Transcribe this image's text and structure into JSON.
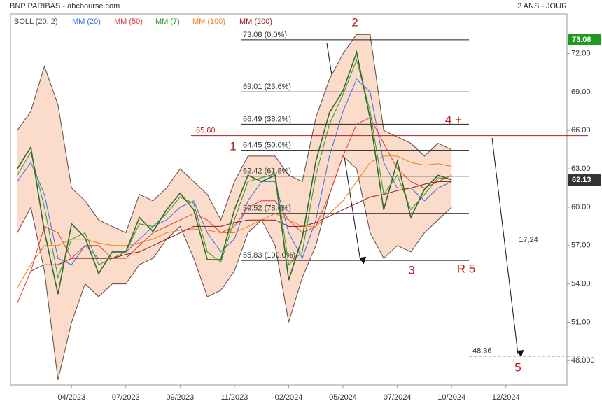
{
  "chart_data": {
    "type": "line",
    "title": "BNP PARIBAS - abcbourse.com",
    "period": "2 ANS - JOUR",
    "categories": [
      null,
      null,
      null,
      null,
      "04/2023",
      null,
      null,
      null,
      "07/2023",
      null,
      null,
      null,
      "09/2023",
      null,
      null,
      null,
      "11/2023",
      null,
      null,
      null,
      "02/2024",
      null,
      null,
      null,
      "05/2024",
      null,
      null,
      null,
      "07/2024",
      null,
      null,
      null,
      "10/2024",
      null,
      null,
      null,
      "12/2024",
      null,
      null,
      null,
      null
    ],
    "values": [
      63.0,
      64.7,
      58.1,
      53.2,
      58.7,
      57.6,
      54.8,
      56.5,
      56.5,
      59.2,
      58.1,
      59.8,
      61.1,
      59.8,
      55.9,
      55.9,
      59.8,
      62.5,
      62.0,
      62.5,
      54.3,
      57.6,
      63.6,
      67.4,
      69.1,
      72.1,
      66.9,
      59.8,
      63.6,
      59.2,
      61.4,
      62.5,
      62.13,
      null,
      null,
      null,
      null,
      null,
      null,
      null,
      null
    ],
    "color": "#2f6b2f",
    "bollinger": {
      "name": "BOLL (20, 2)",
      "color": "#5a4a44",
      "fill": "#fbdccb",
      "upper": [
        66,
        67.5,
        71,
        68,
        61.5,
        60.5,
        59,
        58.5,
        58,
        61,
        60.5,
        61.5,
        63,
        62,
        61,
        59,
        62,
        64,
        64,
        64,
        62.5,
        62,
        67,
        70,
        72,
        73.5,
        73.5,
        66,
        65.5,
        65,
        64,
        65,
        64.5,
        null,
        null,
        null,
        null,
        null,
        null,
        null,
        null
      ],
      "lower": [
        58,
        60,
        55,
        46.5,
        51,
        54,
        53,
        54,
        54,
        55.5,
        56,
        57.5,
        58.5,
        56,
        53,
        53.5,
        55,
        58,
        59,
        57,
        51,
        54.5,
        57,
        61,
        64,
        63,
        58,
        56,
        57,
        56.5,
        58,
        59,
        60,
        null,
        null,
        null,
        null,
        null,
        null,
        null,
        null
      ]
    },
    "series": [
      {
        "name": "MM (20)",
        "color": "#3d6fe0",
        "values": [
          62,
          63.5,
          61,
          56,
          55.5,
          57,
          56,
          56,
          56.5,
          57.5,
          58.5,
          59,
          60,
          60.5,
          58,
          56.5,
          57.5,
          60.5,
          62,
          62,
          58,
          56,
          59,
          64,
          67.5,
          70,
          69,
          63.5,
          61.5,
          61.5,
          60.5,
          61.5,
          62,
          null,
          null,
          null,
          null,
          null,
          null,
          null,
          null
        ]
      },
      {
        "name": "MM (50)",
        "color": "#e03a3a",
        "values": [
          52.5,
          55,
          58.5,
          58,
          56,
          57,
          57,
          56,
          56,
          57,
          58,
          58.5,
          59,
          59.5,
          59,
          58,
          58.5,
          60,
          60.5,
          60.5,
          59,
          58,
          58.5,
          61,
          64,
          66.5,
          67,
          65,
          63,
          62,
          61.5,
          62,
          62.5,
          null,
          null,
          null,
          null,
          null,
          null,
          null,
          null
        ]
      },
      {
        "name": "MM (7)",
        "color": "#2a9a2a",
        "values": [
          62.5,
          64.3,
          60,
          54.5,
          57.5,
          58,
          55.5,
          56,
          56.5,
          58.7,
          58.5,
          59.5,
          60.8,
          60.3,
          56.5,
          55.7,
          59,
          62,
          62.3,
          62.6,
          55.5,
          56.5,
          62.5,
          66.5,
          68.8,
          71.5,
          67.5,
          61,
          62.5,
          59.8,
          61,
          62.3,
          62.2,
          null,
          null,
          null,
          null,
          null,
          null,
          null,
          null
        ]
      },
      {
        "name": "MM (100)",
        "color": "#f07f1a",
        "values": [
          53.7,
          55.5,
          57,
          57,
          57.5,
          57.5,
          57.2,
          57,
          57,
          57.2,
          57.5,
          58,
          58.2,
          58.3,
          58.2,
          58,
          58,
          58.5,
          59,
          59.5,
          59,
          58.5,
          58.5,
          59.5,
          60.5,
          62,
          63.5,
          64,
          64,
          63.5,
          63.3,
          63.4,
          63.2,
          null,
          null,
          null,
          null,
          null,
          null,
          null,
          null
        ]
      },
      {
        "name": "MM (200)",
        "color": "#8b1a1a",
        "values": [
          null,
          55,
          55.5,
          55.5,
          56,
          56,
          56,
          56,
          56.3,
          56.5,
          57,
          57.5,
          58,
          58.5,
          58.5,
          58.5,
          58.8,
          59,
          59,
          59,
          58.5,
          58.5,
          58.8,
          59.3,
          59.8,
          60.3,
          60.8,
          61,
          61.3,
          61.5,
          61.8,
          62,
          62,
          null,
          null,
          null,
          null,
          null,
          null,
          null,
          null
        ]
      }
    ],
    "ylim": [
      46.1,
      75.1
    ],
    "yticks": [
      {
        "value": 48,
        "label": "48.000"
      },
      {
        "value": 51,
        "label": "51.00"
      },
      {
        "value": 54,
        "label": "54.00"
      },
      {
        "value": 57,
        "label": "57.00"
      },
      {
        "value": 60,
        "label": "60.00"
      },
      {
        "value": 63,
        "label": "63.00"
      },
      {
        "value": 66,
        "label": "66.00"
      },
      {
        "value": 69,
        "label": "69.00"
      },
      {
        "value": 72,
        "label": "72.00"
      }
    ],
    "high": 73.08,
    "fibonacci": [
      {
        "value": 73.08,
        "label": "73.08  (0.0%)"
      },
      {
        "value": 69.01,
        "label": "69.01  (23.6%)"
      },
      {
        "value": 66.49,
        "label": "66.49  (38.2%)"
      },
      {
        "value": 64.45,
        "label": "64.45  (50.0%)"
      },
      {
        "value": 62.42,
        "label": "62.42  (61.8%)"
      },
      {
        "value": 59.52,
        "label": "59.52  (78.6%)"
      },
      {
        "value": 55.83,
        "label": "55.83  (100.0%)"
      }
    ],
    "resistance": {
      "value": 65.6,
      "label": "65.60"
    },
    "target": {
      "value": 48.36,
      "label": "48.36"
    },
    "annotations": [
      "1",
      "2",
      "3",
      "4 +",
      "R 5",
      "5",
      "17,24"
    ]
  }
}
